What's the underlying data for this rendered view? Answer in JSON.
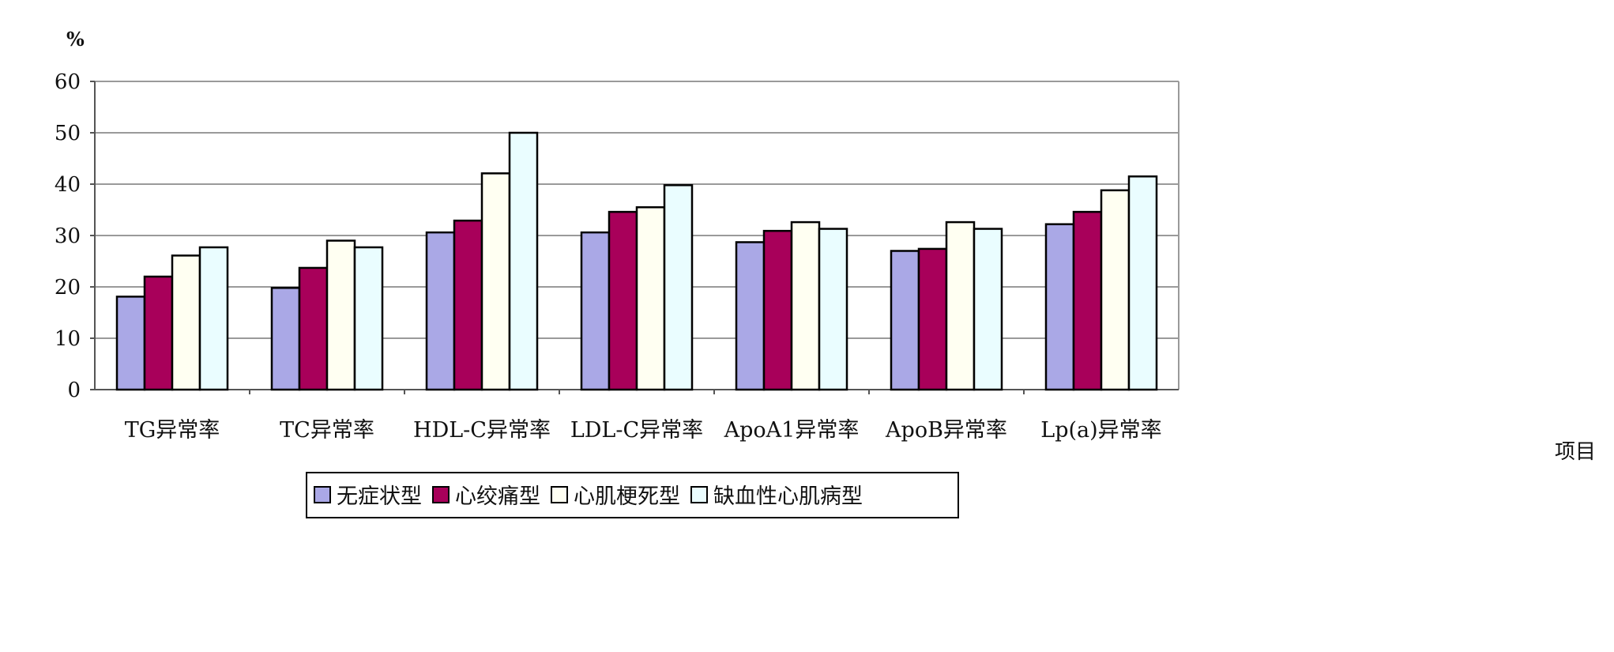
{
  "chart_data": {
    "type": "bar",
    "title": "",
    "ylabel": "%",
    "xlabel": "项目",
    "ylim": [
      0,
      60
    ],
    "yticks": [
      0,
      10,
      20,
      30,
      40,
      50,
      60
    ],
    "grid": true,
    "legend_position": "bottom",
    "categories": [
      "TG异常率",
      "TC异常率",
      "HDL-C异常率",
      "LDL-C异常率",
      "ApoA1异常率",
      "ApoB异常率",
      "Lp(a)异常率"
    ],
    "series": [
      {
        "name": "无症状型",
        "color": "#aaa8e6",
        "values": [
          18.1,
          19.8,
          30.6,
          30.6,
          28.7,
          27.0,
          32.2
        ]
      },
      {
        "name": "心绞痛型",
        "color": "#a8005a",
        "values": [
          22.0,
          23.7,
          32.9,
          34.6,
          30.9,
          27.4,
          34.6
        ]
      },
      {
        "name": "心肌梗死型",
        "color": "#fffff2",
        "values": [
          26.1,
          29.0,
          42.1,
          35.5,
          32.6,
          32.6,
          38.8
        ]
      },
      {
        "name": "缺血性心肌病型",
        "color": "#eafdff",
        "values": [
          27.7,
          27.7,
          50.0,
          39.8,
          31.3,
          31.3,
          41.5
        ]
      }
    ]
  }
}
